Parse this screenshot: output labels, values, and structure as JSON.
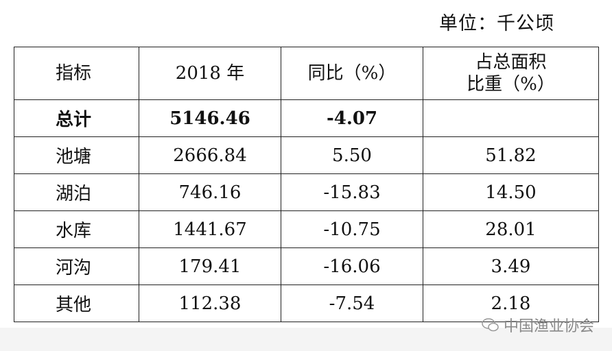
{
  "unit": "单位：千公顷",
  "table": {
    "header": [
      "指标",
      "2018 年",
      "同比（%）",
      [
        "占总面积",
        "比重（%）"
      ]
    ],
    "rows": [
      [
        "总计",
        "5146.46",
        "-4.07"
      ],
      [
        "池塘",
        "2666.84",
        "5.50",
        "51.82"
      ],
      [
        "湖泊",
        "746.16",
        "-15.83",
        "14.50"
      ],
      [
        "水库",
        "1441.67",
        "-10.75",
        "28.01"
      ],
      [
        "河沟",
        "179.41",
        "-16.06",
        "3.49"
      ],
      [
        "其他",
        "112.38",
        "-7.54",
        "2.18"
      ]
    ]
  },
  "watermark": "中国渔业协会"
}
